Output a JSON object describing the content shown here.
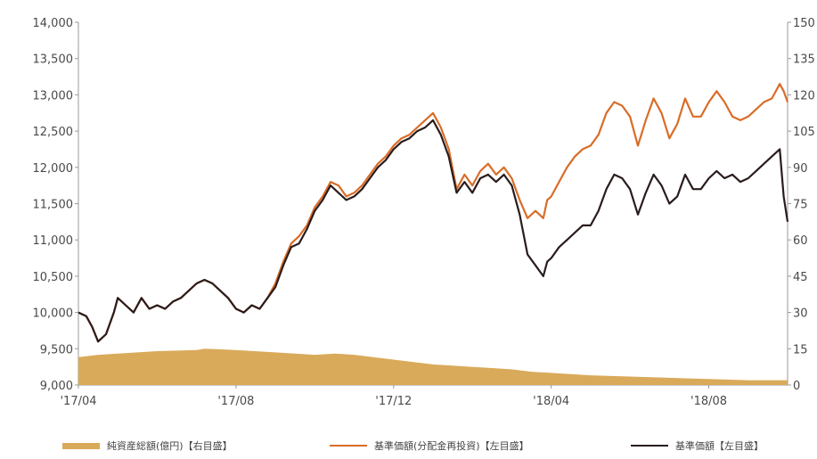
{
  "chart_data": {
    "type": "line",
    "left_axis": {
      "ticks": [
        "9,000",
        "9,500",
        "10,000",
        "10,500",
        "11,000",
        "11,500",
        "12,000",
        "12,500",
        "13,000",
        "13,500",
        "14,000"
      ],
      "range": [
        9000,
        14000
      ]
    },
    "right_axis": {
      "ticks": [
        "0",
        "15",
        "30",
        "45",
        "60",
        "75",
        "90",
        "105",
        "120",
        "135",
        "150"
      ],
      "range": [
        0,
        150
      ]
    },
    "x_ticks": [
      "'17/04",
      "'17/08",
      "'17/12",
      "'18/04",
      "'18/08"
    ],
    "x_range": [
      0,
      18
    ],
    "x_tick_positions": [
      0,
      4,
      8,
      12,
      16
    ],
    "series": [
      {
        "name": "純資産総額(億円)【右目盛】",
        "kind": "area",
        "axis": "right",
        "color": "#d9aa5a",
        "x": [
          0,
          0.5,
          1,
          2,
          3,
          3.2,
          4,
          5,
          6,
          6.5,
          7,
          8,
          9,
          10,
          11,
          11.5,
          12,
          13,
          14,
          15,
          16,
          17,
          18
        ],
        "values": [
          11.5,
          12.5,
          13,
          14,
          14.5,
          15,
          14.5,
          13.5,
          12.5,
          13,
          12.5,
          10.5,
          8.5,
          7.5,
          6.5,
          5.5,
          5,
          4,
          3.5,
          3,
          2.5,
          2,
          2
        ]
      },
      {
        "name": "基準価額(分配金再投資)【左目盛】",
        "kind": "line",
        "axis": "left",
        "color": "#d96c28",
        "x": [
          0,
          0.2,
          0.35,
          0.5,
          0.7,
          0.9,
          1.0,
          1.2,
          1.4,
          1.6,
          1.8,
          2.0,
          2.2,
          2.4,
          2.6,
          2.8,
          3.0,
          3.2,
          3.4,
          3.6,
          3.8,
          4.0,
          4.2,
          4.4,
          4.6,
          4.8,
          5.0,
          5.2,
          5.4,
          5.6,
          5.8,
          6.0,
          6.2,
          6.4,
          6.6,
          6.8,
          7.0,
          7.2,
          7.4,
          7.6,
          7.8,
          8.0,
          8.2,
          8.4,
          8.6,
          8.8,
          9.0,
          9.2,
          9.4,
          9.6,
          9.8,
          10.0,
          10.2,
          10.4,
          10.6,
          10.8,
          11.0,
          11.2,
          11.4,
          11.6,
          11.8,
          11.9,
          12.0,
          12.2,
          12.4,
          12.6,
          12.8,
          13.0,
          13.2,
          13.4,
          13.6,
          13.8,
          14.0,
          14.2,
          14.4,
          14.6,
          14.8,
          15.0,
          15.2,
          15.4,
          15.6,
          15.8,
          16.0,
          16.2,
          16.4,
          16.6,
          16.8,
          17.0,
          17.2,
          17.4,
          17.6,
          17.8,
          17.9,
          18.0
        ],
        "values": [
          10000,
          9950,
          9800,
          9600,
          9700,
          10000,
          10200,
          10100,
          10000,
          10200,
          10050,
          10100,
          10050,
          10150,
          10200,
          10300,
          10400,
          10450,
          10400,
          10300,
          10200,
          10050,
          10000,
          10100,
          10050,
          10200,
          10400,
          10700,
          10950,
          11050,
          11200,
          11450,
          11600,
          11800,
          11750,
          11600,
          11650,
          11750,
          11900,
          12050,
          12150,
          12300,
          12400,
          12450,
          12550,
          12650,
          12750,
          12550,
          12250,
          11700,
          11900,
          11750,
          11950,
          12050,
          11900,
          12000,
          11850,
          11550,
          11300,
          11400,
          11300,
          11550,
          11600,
          11800,
          12000,
          12150,
          12250,
          12300,
          12450,
          12750,
          12900,
          12850,
          12700,
          12300,
          12650,
          12950,
          12750,
          12400,
          12600,
          12950,
          12700,
          12700,
          12900,
          13050,
          12900,
          12700,
          12650,
          12700,
          12800,
          12900,
          12950,
          13150,
          13050,
          12900
        ]
      },
      {
        "name": "基準価額【左目盛】",
        "kind": "line",
        "axis": "left",
        "color": "#2a1c1c",
        "x": [
          0,
          0.2,
          0.35,
          0.5,
          0.7,
          0.9,
          1.0,
          1.2,
          1.4,
          1.6,
          1.8,
          2.0,
          2.2,
          2.4,
          2.6,
          2.8,
          3.0,
          3.2,
          3.4,
          3.6,
          3.8,
          4.0,
          4.2,
          4.4,
          4.6,
          4.8,
          5.0,
          5.2,
          5.4,
          5.6,
          5.8,
          6.0,
          6.2,
          6.4,
          6.6,
          6.8,
          7.0,
          7.2,
          7.4,
          7.6,
          7.8,
          8.0,
          8.2,
          8.4,
          8.6,
          8.8,
          9.0,
          9.2,
          9.4,
          9.6,
          9.8,
          10.0,
          10.2,
          10.4,
          10.6,
          10.8,
          11.0,
          11.2,
          11.4,
          11.6,
          11.8,
          11.9,
          12.0,
          12.2,
          12.4,
          12.6,
          12.8,
          13.0,
          13.2,
          13.4,
          13.6,
          13.8,
          14.0,
          14.2,
          14.4,
          14.6,
          14.8,
          15.0,
          15.2,
          15.4,
          15.6,
          15.8,
          16.0,
          16.2,
          16.4,
          16.6,
          16.8,
          17.0,
          17.2,
          17.4,
          17.6,
          17.8,
          17.9,
          18.0
        ],
        "values": [
          10000,
          9950,
          9800,
          9600,
          9700,
          10000,
          10200,
          10100,
          10000,
          10200,
          10050,
          10100,
          10050,
          10150,
          10200,
          10300,
          10400,
          10450,
          10400,
          10300,
          10200,
          10050,
          10000,
          10100,
          10050,
          10200,
          10350,
          10650,
          10900,
          10950,
          11150,
          11400,
          11550,
          11750,
          11650,
          11550,
          11600,
          11700,
          11850,
          12000,
          12100,
          12250,
          12350,
          12400,
          12500,
          12550,
          12650,
          12450,
          12150,
          11650,
          11800,
          11650,
          11850,
          11900,
          11800,
          11900,
          11750,
          11350,
          10800,
          10650,
          10500,
          10700,
          10750,
          10900,
          11000,
          11100,
          11200,
          11200,
          11400,
          11700,
          11900,
          11850,
          11700,
          11350,
          11650,
          11900,
          11750,
          11500,
          11600,
          11900,
          11700,
          11700,
          11850,
          11950,
          11850,
          11900,
          11800,
          11850,
          11950,
          12050,
          12150,
          12250,
          11600,
          11250
        ]
      }
    ]
  }
}
